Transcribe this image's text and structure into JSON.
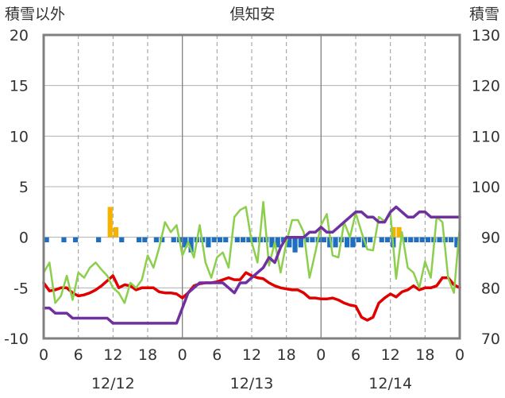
{
  "chart_data": {
    "type": "line",
    "title": "倶知安",
    "ylabel_left": "積雪以外",
    "ylabel_right": "積雪",
    "left_axis": {
      "ylim": [
        -10,
        20
      ],
      "ticks": [
        "20",
        "15",
        "10",
        "5",
        "0",
        "-5",
        "-10"
      ]
    },
    "right_axis": {
      "ylim": [
        70,
        130
      ],
      "ticks": [
        "130",
        "120",
        "110",
        "100",
        "90",
        "80",
        "70"
      ]
    },
    "x_hours": [
      0,
      72
    ],
    "x_tick_labels": [
      "0",
      "6",
      "12",
      "18",
      "0",
      "6",
      "12",
      "18",
      "0",
      "6",
      "12",
      "18",
      "0"
    ],
    "day_labels": [
      "12/12",
      "12/13",
      "12/14"
    ],
    "grid": true,
    "colors": {
      "precip": "#f5b300",
      "sunshine": "#1f6fc0",
      "temperature": "#e00000",
      "wind": "#8ccf4c",
      "snow_depth": "#7030a0",
      "frame": "#808080"
    },
    "bars_precip": [
      {
        "x": 11.5,
        "y": 3.0
      },
      {
        "x": 12.5,
        "y": 1.0
      },
      {
        "x": 60.5,
        "y": 1.0
      },
      {
        "x": 61.5,
        "y": 1.0
      }
    ],
    "bars_sunshine": [
      {
        "x": 0.5,
        "y": -0.5
      },
      {
        "x": 3.5,
        "y": -0.5
      },
      {
        "x": 5.5,
        "y": -0.5
      },
      {
        "x": 9.5,
        "y": -0.5
      },
      {
        "x": 13.5,
        "y": -0.5
      },
      {
        "x": 16.5,
        "y": -0.5
      },
      {
        "x": 17.5,
        "y": -0.5
      },
      {
        "x": 19.5,
        "y": -0.5
      },
      {
        "x": 20.5,
        "y": -0.5
      },
      {
        "x": 22.5,
        "y": -0.5
      },
      {
        "x": 23.5,
        "y": -0.5
      },
      {
        "x": 24.5,
        "y": -1.0
      },
      {
        "x": 25.5,
        "y": -1.5
      },
      {
        "x": 26.5,
        "y": -0.5
      },
      {
        "x": 27.5,
        "y": -0.5
      },
      {
        "x": 28.5,
        "y": -1.0
      },
      {
        "x": 29.5,
        "y": -0.5
      },
      {
        "x": 30.5,
        "y": -0.5
      },
      {
        "x": 31.5,
        "y": -0.5
      },
      {
        "x": 33.5,
        "y": -0.5
      },
      {
        "x": 34.5,
        "y": -0.5
      },
      {
        "x": 35.5,
        "y": -0.5
      },
      {
        "x": 36.5,
        "y": -0.5
      },
      {
        "x": 37.5,
        "y": -0.5
      },
      {
        "x": 38.5,
        "y": -0.5
      },
      {
        "x": 39.5,
        "y": -1.0
      },
      {
        "x": 40.5,
        "y": -1.0
      },
      {
        "x": 41.5,
        "y": -0.5
      },
      {
        "x": 42.5,
        "y": -1.0
      },
      {
        "x": 43.5,
        "y": -1.5
      },
      {
        "x": 44.5,
        "y": -1.0
      },
      {
        "x": 45.5,
        "y": -0.5
      },
      {
        "x": 46.5,
        "y": -0.5
      },
      {
        "x": 47.5,
        "y": -0.5
      },
      {
        "x": 48.5,
        "y": -0.5
      },
      {
        "x": 49.5,
        "y": -1.0
      },
      {
        "x": 50.5,
        "y": -1.0
      },
      {
        "x": 51.5,
        "y": -0.5
      },
      {
        "x": 52.5,
        "y": -1.0
      },
      {
        "x": 53.5,
        "y": -1.0
      },
      {
        "x": 54.5,
        "y": -0.5
      },
      {
        "x": 55.5,
        "y": -1.0
      },
      {
        "x": 56.5,
        "y": -0.5
      },
      {
        "x": 58.5,
        "y": -0.5
      },
      {
        "x": 59.5,
        "y": -0.5
      },
      {
        "x": 60.5,
        "y": -1.0
      },
      {
        "x": 62.5,
        "y": -0.5
      },
      {
        "x": 63.5,
        "y": -0.5
      },
      {
        "x": 64.5,
        "y": -0.5
      },
      {
        "x": 65.5,
        "y": -0.5
      },
      {
        "x": 66.5,
        "y": -0.5
      },
      {
        "x": 67.5,
        "y": -0.5
      },
      {
        "x": 68.5,
        "y": -0.5
      },
      {
        "x": 69.5,
        "y": -0.5
      },
      {
        "x": 70.5,
        "y": -0.5
      },
      {
        "x": 71.5,
        "y": -1.0
      }
    ],
    "series": [
      {
        "key": "temperature",
        "axis": "left",
        "x": [
          0,
          1,
          2,
          3,
          4,
          5,
          6,
          7,
          8,
          9,
          10,
          11,
          12,
          13,
          14,
          15,
          16,
          17,
          18,
          19,
          20,
          21,
          22,
          23,
          24,
          25,
          26,
          27,
          28,
          29,
          30,
          31,
          32,
          33,
          34,
          35,
          36,
          37,
          38,
          39,
          40,
          41,
          42,
          43,
          44,
          45,
          46,
          47,
          48,
          49,
          50,
          51,
          52,
          53,
          54,
          55,
          56,
          57,
          58,
          59,
          60,
          61,
          62,
          63,
          64,
          65,
          66,
          67,
          68,
          69,
          70,
          71,
          72
        ],
        "y": [
          -4.5,
          -5.3,
          -5.2,
          -5.0,
          -5.0,
          -5.5,
          -5.8,
          -5.7,
          -5.5,
          -5.2,
          -4.8,
          -4.3,
          -3.8,
          -5.0,
          -4.7,
          -4.8,
          -5.2,
          -5.0,
          -5.0,
          -5.0,
          -5.4,
          -5.5,
          -5.5,
          -5.6,
          -6.0,
          -5.5,
          -4.8,
          -4.6,
          -4.5,
          -4.5,
          -4.4,
          -4.2,
          -4.0,
          -4.2,
          -4.2,
          -3.5,
          -3.8,
          -4.0,
          -4.1,
          -4.5,
          -4.8,
          -5.0,
          -5.1,
          -5.2,
          -5.2,
          -5.5,
          -6.0,
          -6.0,
          -6.1,
          -6.1,
          -6.0,
          -6.2,
          -6.5,
          -6.7,
          -6.8,
          -7.9,
          -8.2,
          -7.9,
          -6.5,
          -6.0,
          -5.6,
          -5.9,
          -5.4,
          -5.2,
          -4.8,
          -5.2,
          -5.0,
          -5.0,
          -4.8,
          -4.0,
          -4.0,
          -4.7,
          -5.0
        ]
      },
      {
        "key": "wind",
        "axis": "left",
        "x": [
          0,
          1,
          2,
          3,
          4,
          5,
          6,
          7,
          8,
          9,
          10,
          11,
          12,
          13,
          14,
          15,
          16,
          17,
          18,
          19,
          20,
          21,
          22,
          23,
          24,
          25,
          26,
          27,
          28,
          29,
          30,
          31,
          32,
          33,
          34,
          35,
          36,
          37,
          38,
          39,
          40,
          41,
          42,
          43,
          44,
          45,
          46,
          47,
          48,
          49,
          50,
          51,
          52,
          53,
          54,
          55,
          56,
          57,
          58,
          59,
          60,
          61,
          62,
          63,
          64,
          65,
          66,
          67,
          68,
          69,
          70,
          71,
          72
        ],
        "y": [
          -3.5,
          -2.5,
          -6.5,
          -5.8,
          -3.8,
          -6.2,
          -3.5,
          -4.0,
          -3.0,
          -2.5,
          -3.2,
          -3.8,
          -5.0,
          -5.5,
          -6.5,
          -4.5,
          -5.0,
          -4.2,
          -1.8,
          -3.0,
          -1.0,
          1.5,
          0.5,
          1.2,
          -1.8,
          -0.5,
          -2.0,
          1.2,
          -2.5,
          -4.0,
          -2.0,
          -1.5,
          -3.0,
          2.0,
          2.7,
          3.0,
          -0.5,
          -2.5,
          3.5,
          -2.8,
          -0.5,
          -3.5,
          -0.5,
          1.7,
          1.7,
          0.5,
          -4.0,
          -1.5,
          1.2,
          2.3,
          -1.8,
          -2.0,
          1.5,
          0,
          2.4,
          0.5,
          -1.2,
          -1.3,
          2.0,
          1.6,
          2.3,
          -4.1,
          0.5,
          -3.0,
          -3.5,
          -5.0,
          -2.4,
          -4.0,
          2.0,
          1.5,
          -4.0,
          -5.5,
          1.0
        ]
      },
      {
        "key": "snow_depth",
        "axis": "right",
        "x": [
          0,
          1,
          2,
          3,
          4,
          5,
          6,
          7,
          8,
          9,
          10,
          11,
          12,
          13,
          14,
          15,
          16,
          17,
          18,
          19,
          20,
          21,
          22,
          23,
          24,
          25,
          26,
          27,
          28,
          29,
          30,
          31,
          32,
          33,
          34,
          35,
          36,
          37,
          38,
          39,
          40,
          41,
          42,
          43,
          44,
          45,
          46,
          47,
          48,
          49,
          50,
          51,
          52,
          53,
          54,
          55,
          56,
          57,
          58,
          59,
          60,
          61,
          62,
          63,
          64,
          65,
          66,
          67,
          68,
          69,
          70,
          71,
          72
        ],
        "y": [
          76,
          76,
          75,
          75,
          75,
          74,
          74,
          74,
          74,
          74,
          74,
          74,
          73,
          73,
          73,
          73,
          73,
          73,
          73,
          73,
          73,
          73,
          73,
          73,
          76,
          79,
          80,
          81,
          81,
          81,
          81,
          81,
          80,
          79,
          81,
          81,
          82,
          83,
          84,
          86,
          85,
          88,
          90,
          90,
          90,
          90,
          91,
          91,
          92,
          91,
          91,
          92,
          93,
          94,
          95,
          95,
          94,
          94,
          93,
          93,
          95,
          96,
          95,
          94,
          94,
          95,
          95,
          94,
          94,
          94,
          94,
          94,
          94
        ]
      }
    ]
  }
}
